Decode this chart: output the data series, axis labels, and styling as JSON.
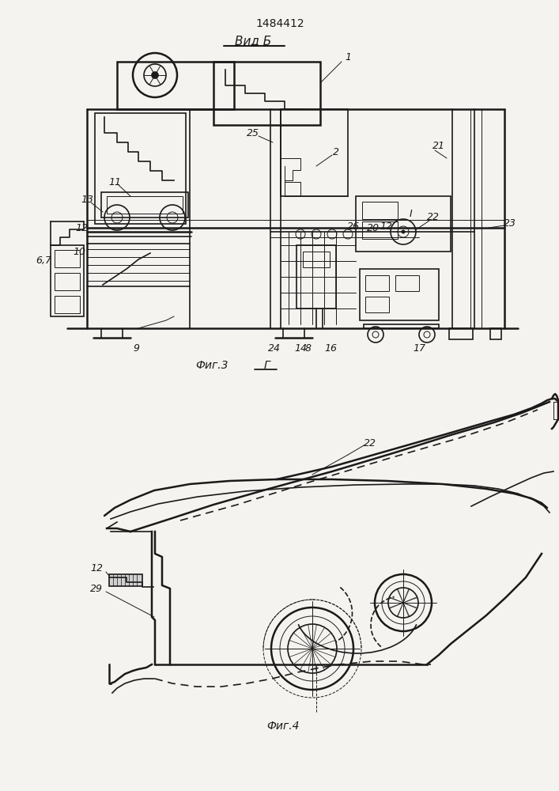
{
  "patent_number": "1484412",
  "view_label": "Вид Б",
  "fig3_label": "Фиг.3",
  "fig4_label": "Фиг.4",
  "fig3_letter": "Г",
  "bg_color": "#f5f3ef",
  "line_color": "#1a1a1a",
  "fig3": {
    "ox": 108,
    "oy": 85,
    "ow": 530,
    "oh": 330
  }
}
